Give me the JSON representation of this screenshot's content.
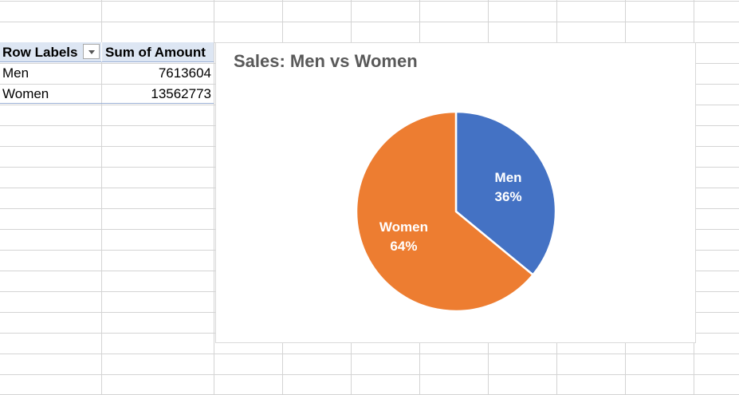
{
  "pivot": {
    "header_row_labels": "Row Labels",
    "header_sum": "Sum of Amount",
    "filter_icon": "dropdown-arrow-icon",
    "rows": [
      {
        "label": "Men",
        "value": "7613604"
      },
      {
        "label": "Women",
        "value": "13562773"
      }
    ]
  },
  "chart_data": {
    "type": "pie",
    "title": "Sales: Men vs Women",
    "categories": [
      "Men",
      "Women"
    ],
    "values": [
      7613604,
      13562773
    ],
    "percent_labels": [
      "36%",
      "64%"
    ],
    "colors": [
      "#4472c4",
      "#ed7d31"
    ],
    "legend": "none",
    "data_labels": "category and percentage inside slices"
  }
}
